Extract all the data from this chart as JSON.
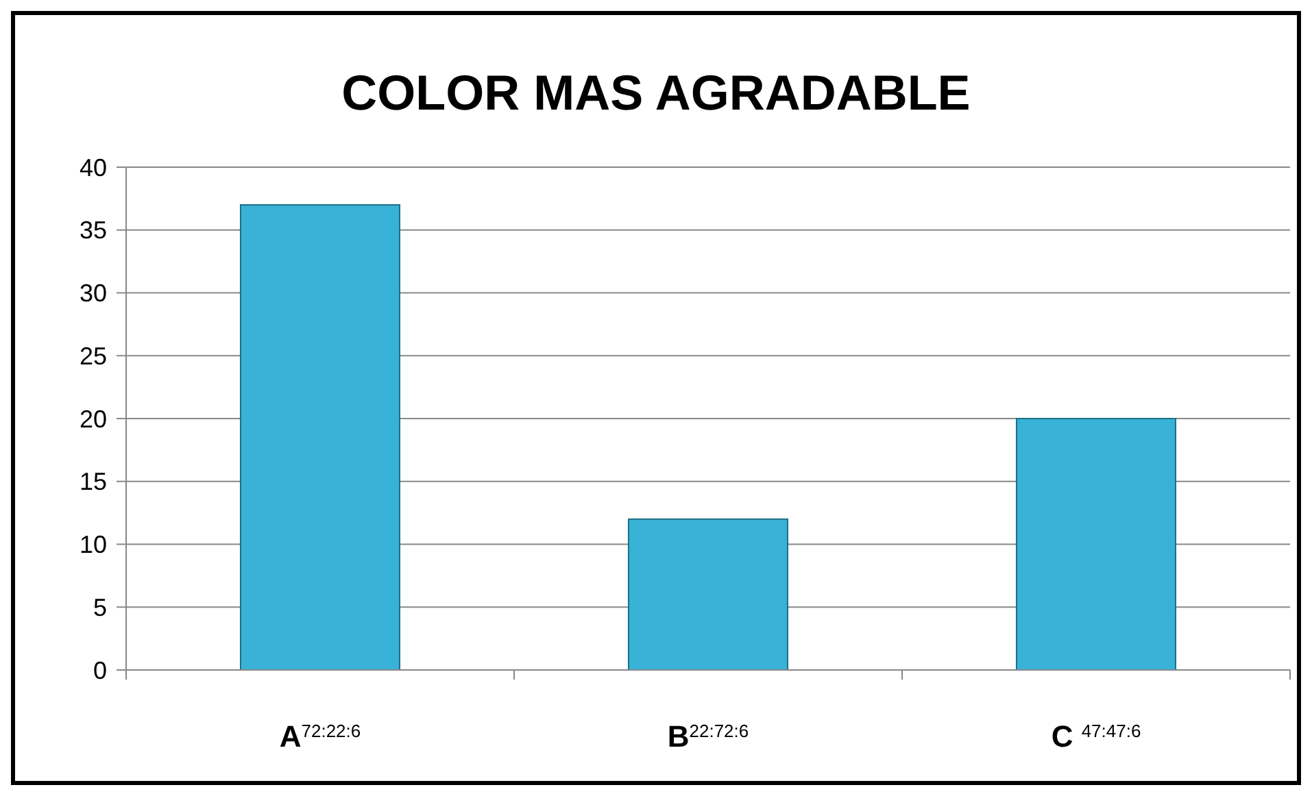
{
  "chart_data": {
    "type": "bar",
    "title": "COLOR MAS AGRADABLE",
    "categories": [
      "A$^{72:22:6}$",
      "B$^{22:72:6}$",
      "C $^{47:47:6}$"
    ],
    "values": [
      37,
      12,
      20
    ],
    "color": "#38b2d6",
    "ylim": [
      0,
      40
    ],
    "yticks": [
      0,
      5,
      10,
      15,
      20,
      25,
      30,
      35,
      40
    ],
    "grid": "y"
  }
}
